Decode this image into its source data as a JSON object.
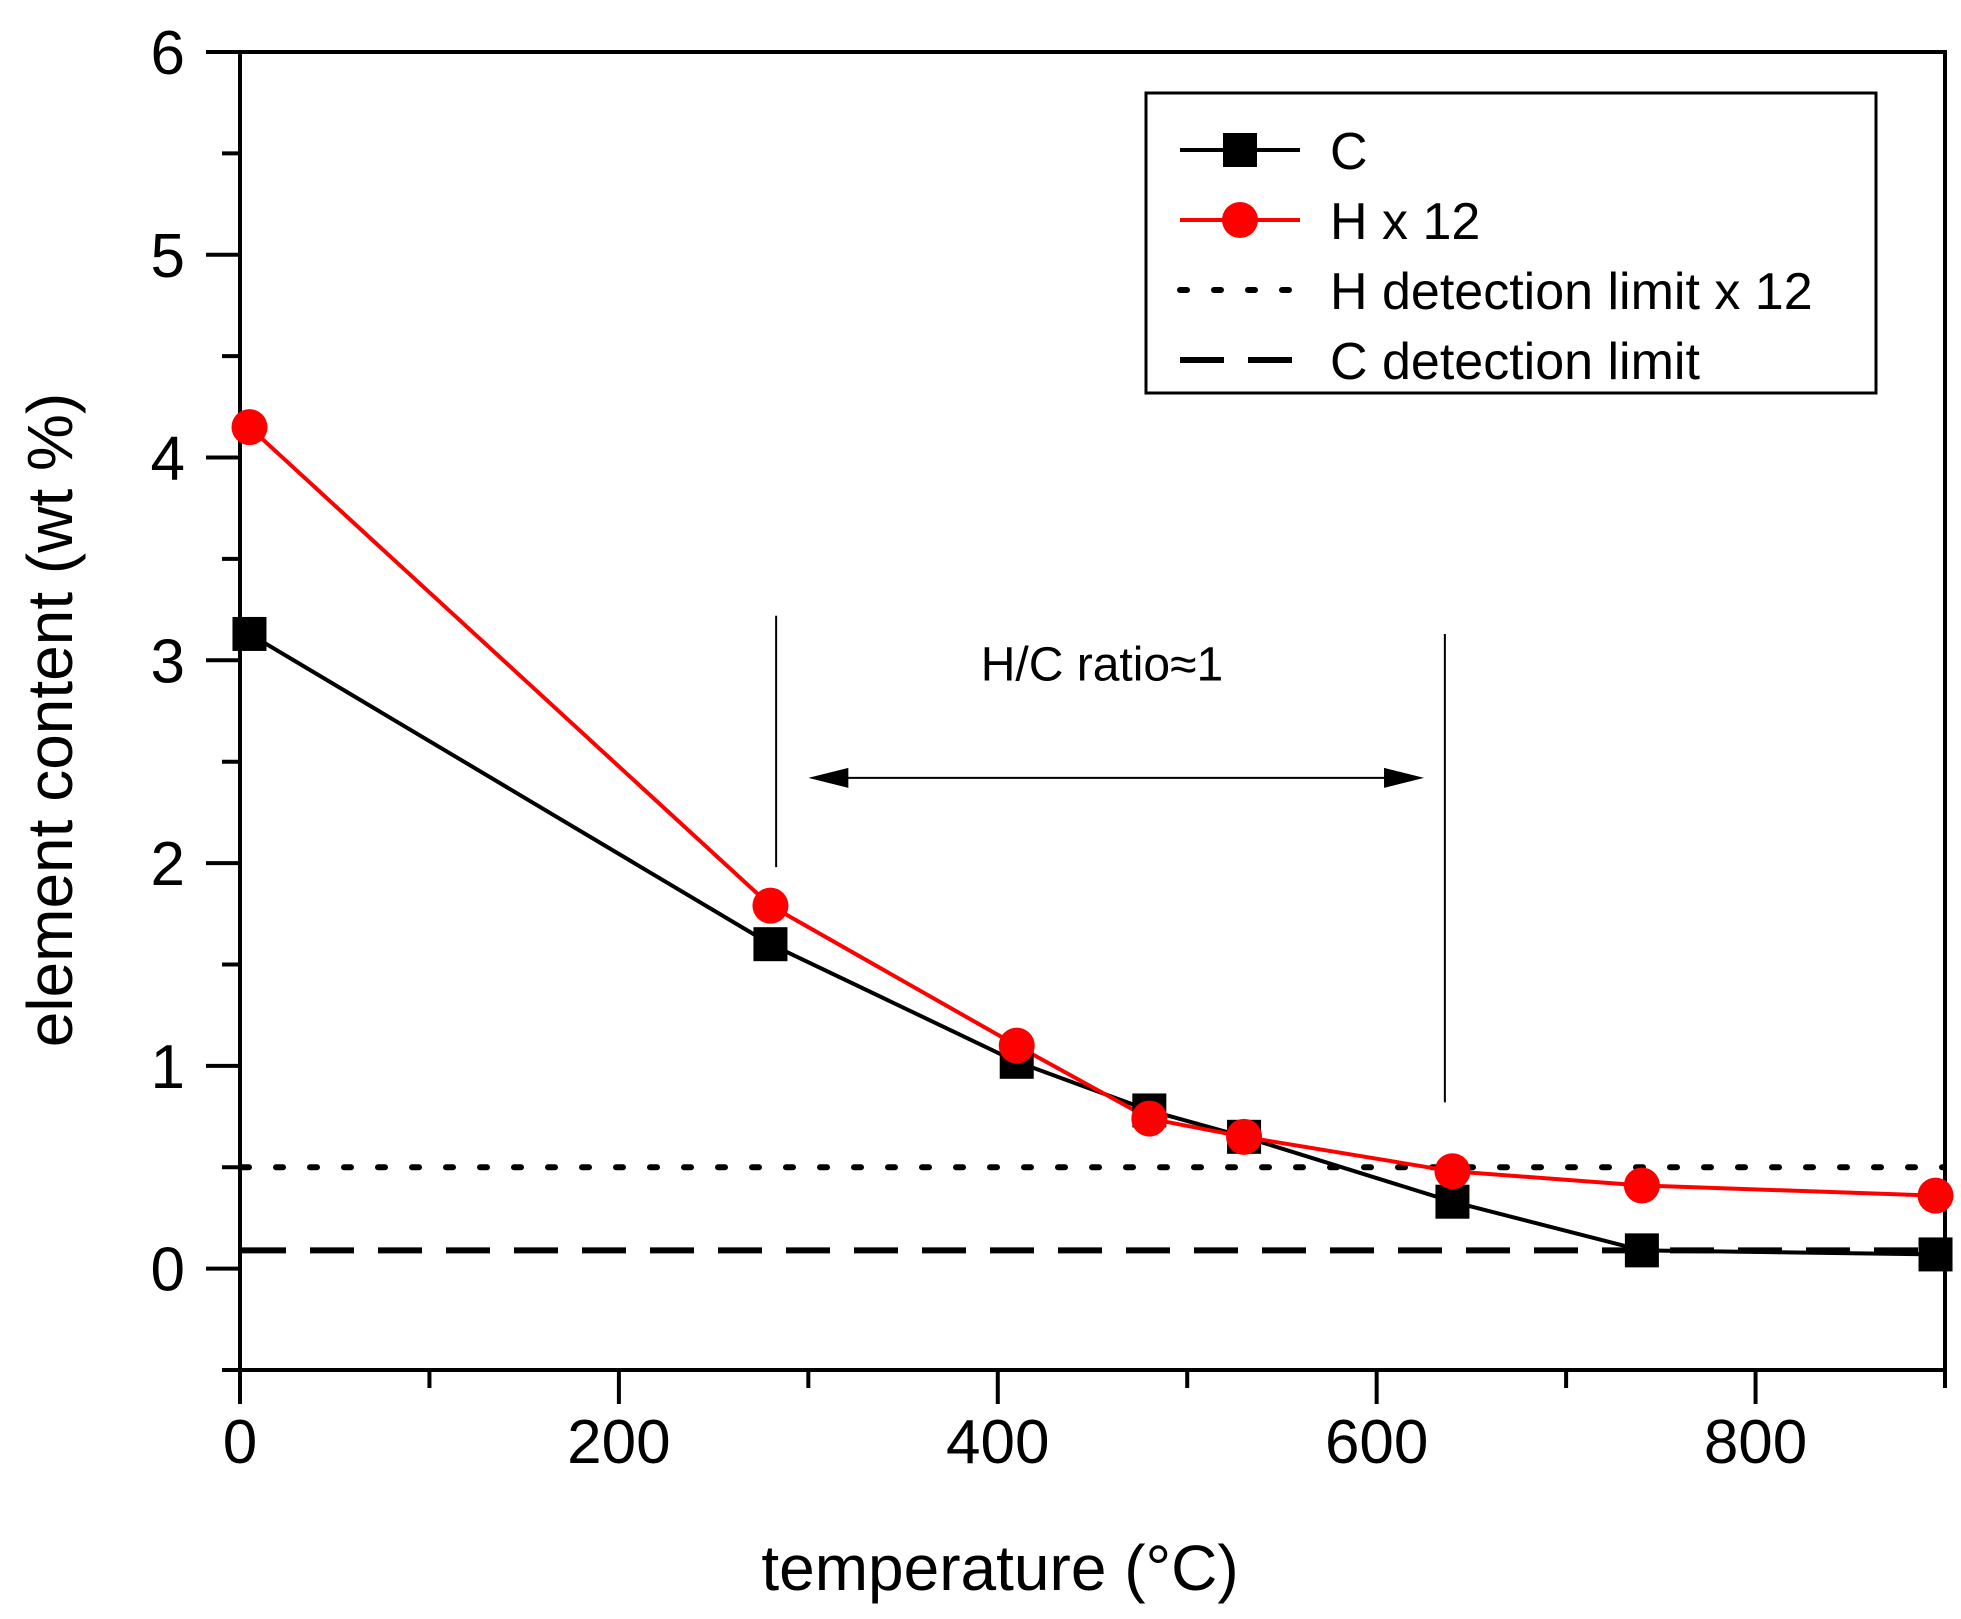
{
  "chart_data": {
    "type": "line",
    "title": "",
    "xlabel": "temperature (°C)",
    "ylabel": "element content (wt %)",
    "xlim": [
      0,
      900
    ],
    "ylim": [
      -0.5,
      6
    ],
    "xticks": [
      0,
      200,
      400,
      600,
      800
    ],
    "yticks": [
      0,
      1,
      2,
      3,
      4,
      5,
      6
    ],
    "x_minor_step": 100,
    "y_minor_step": 0.5,
    "grid": false,
    "legend_position": "top-right",
    "series": [
      {
        "name": "C",
        "color": "#000000",
        "marker": "square",
        "x": [
          5,
          280,
          410,
          480,
          530,
          640,
          740,
          895
        ],
        "y": [
          3.13,
          1.6,
          1.02,
          0.78,
          0.65,
          0.33,
          0.09,
          0.07
        ]
      },
      {
        "name": "H x 12",
        "color": "#ff0000",
        "marker": "circle",
        "x": [
          5,
          280,
          410,
          480,
          530,
          640,
          740,
          895
        ],
        "y": [
          4.15,
          1.79,
          1.1,
          0.74,
          0.65,
          0.48,
          0.41,
          0.36
        ]
      }
    ],
    "reference_lines": [
      {
        "name": "H detection limit x 12",
        "style": "dotted",
        "color": "#000000",
        "y": 0.5
      },
      {
        "name": "C detection limit",
        "style": "dashed",
        "color": "#000000",
        "y": 0.09
      }
    ],
    "annotation": {
      "text": "H/C ratio≈1",
      "x_text": 455,
      "y_text": 2.9,
      "arrow_from": 300,
      "arrow_to": 625,
      "arrow_y": 2.42,
      "bracket_left": {
        "x": 283,
        "y_top": 3.22,
        "y_bottom": 1.98
      },
      "bracket_right": {
        "x": 636,
        "y_top": 3.13,
        "y_bottom": 0.82
      }
    }
  }
}
